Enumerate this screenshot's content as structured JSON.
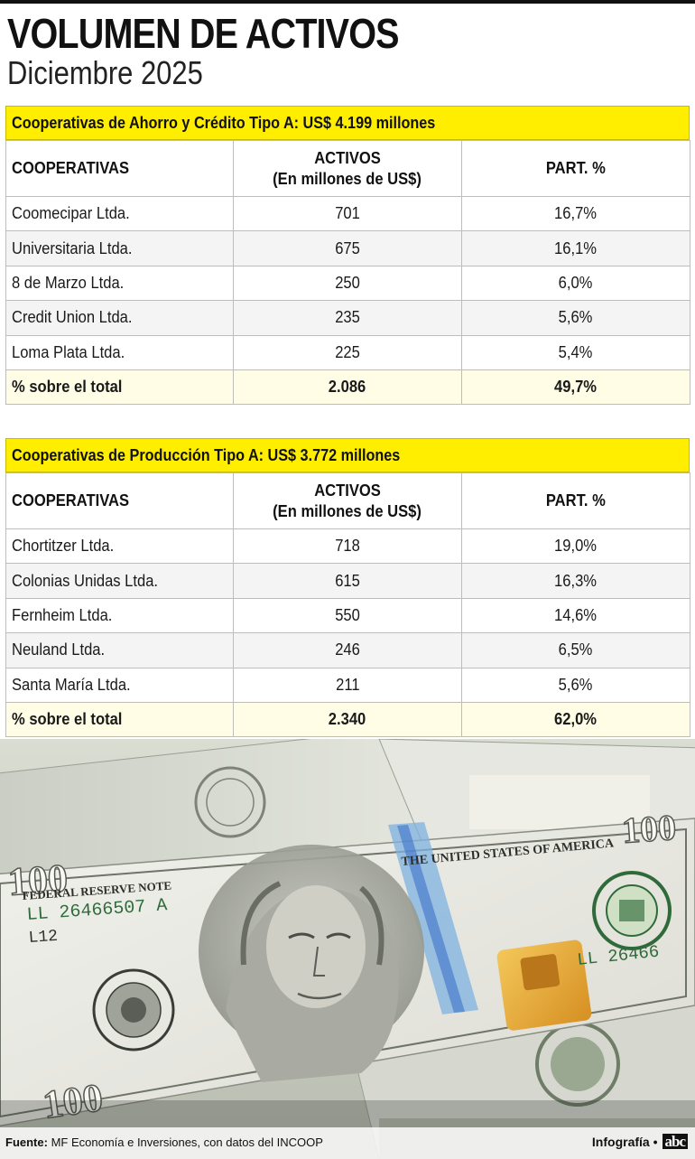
{
  "header": {
    "title": "VOLUMEN DE ACTIVOS",
    "subtitle": "Diciembre 2025"
  },
  "tables": [
    {
      "heading": "Cooperativas de Ahorro y Crédito Tipo A: US$ 4.199 millones",
      "columns": [
        "COOPERATIVAS",
        "ACTIVOS",
        "(En millones de US$)",
        "PART. %"
      ],
      "rows": [
        {
          "name": "Coomecipar Ltda.",
          "assets": "701",
          "share": "16,7%"
        },
        {
          "name": "Universitaria Ltda.",
          "assets": "675",
          "share": "16,1%"
        },
        {
          "name": "8 de Marzo Ltda.",
          "assets": "250",
          "share": "6,0%"
        },
        {
          "name": "Credit Union Ltda.",
          "assets": "235",
          "share": "5,6%"
        },
        {
          "name": "Loma Plata Ltda.",
          "assets": "225",
          "share": "5,4%"
        }
      ],
      "total": {
        "name": "% sobre el total",
        "assets": "2.086",
        "share": "49,7%"
      }
    },
    {
      "heading": "Cooperativas de Producción Tipo A: US$ 3.772 millones",
      "columns": [
        "COOPERATIVAS",
        "ACTIVOS",
        "(En millones de US$)",
        "PART. %"
      ],
      "rows": [
        {
          "name": "Chortitzer Ltda.",
          "assets": "718",
          "share": "19,0%"
        },
        {
          "name": "Colonias Unidas Ltda.",
          "assets": "615",
          "share": "16,3%"
        },
        {
          "name": "Fernheim Ltda.",
          "assets": "550",
          "share": "14,6%"
        },
        {
          "name": "Neuland Ltda.",
          "assets": "246",
          "share": "6,5%"
        },
        {
          "name": "Santa María Ltda.",
          "assets": "211",
          "share": "5,6%"
        }
      ],
      "total": {
        "name": "% sobre el total",
        "assets": "2.340",
        "share": "62,0%"
      }
    }
  ],
  "banknote": {
    "denomination": "100",
    "reserve_note": "FEDERAL RESERVE NOTE",
    "serial": "LL 26466507 A",
    "plate": "L12",
    "country": "THE UNITED STATES OF AMERICA",
    "serial_partial": "LL 26466"
  },
  "footer": {
    "source_label": "Fuente:",
    "source_text": "MF Economía e Inversiones, con datos del INCOOP",
    "credit": "Infografía •",
    "logo": "abc"
  },
  "colors": {
    "highlight": "#ffee00",
    "text": "#111111",
    "border": "#bdbdbd"
  }
}
